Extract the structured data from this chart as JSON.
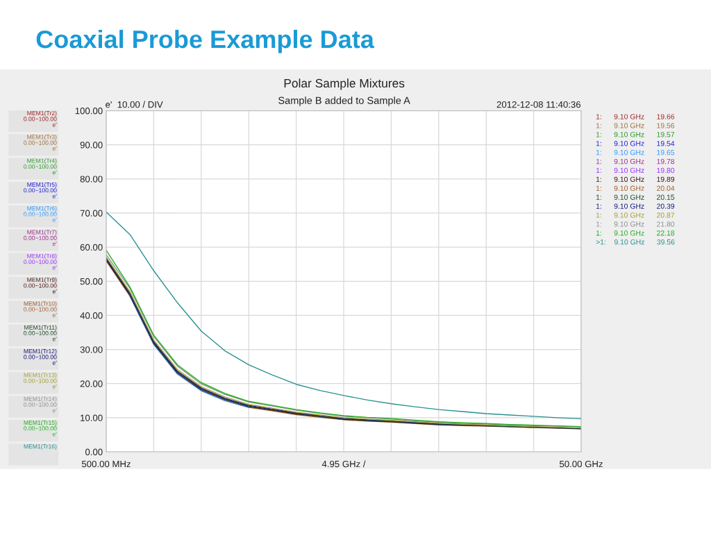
{
  "chart_data": {
    "type": "line",
    "title": "Coaxial Probe Example Data",
    "subtitle": "Polar Sample Mixtures",
    "categories": [
      "500.00 MHz",
      null,
      null,
      null,
      null,
      null,
      null,
      null,
      null,
      null,
      "4.95 GHz /",
      null,
      null,
      null,
      null,
      null,
      null,
      null,
      null,
      null,
      "50.00 GHz"
    ],
    "ylim": [
      0,
      100
    ],
    "yticks": [
      {
        "value": 0,
        "label": "0.00"
      },
      {
        "value": 10,
        "label": "10.00"
      },
      {
        "value": 20,
        "label": "20.00"
      },
      {
        "value": 30,
        "label": "30.00"
      },
      {
        "value": 40,
        "label": "40.00"
      },
      {
        "value": 50,
        "label": "50.00"
      },
      {
        "value": 60,
        "label": "60.00"
      },
      {
        "value": 70,
        "label": "70.00"
      },
      {
        "value": 80,
        "label": "80.00"
      },
      {
        "value": 90,
        "label": "90.00"
      },
      {
        "value": 100,
        "label": "100.00"
      }
    ],
    "grid": true,
    "legend": "left",
    "marker": "none",
    "line_style": "solid",
    "series": [
      {
        "name": "MEM1(Tr2)\n0.00~100.00\ne'",
        "color": "#a02828",
        "values": [
          null,
          null,
          null,
          null,
          null,
          null,
          null,
          null,
          null,
          null,
          null,
          null,
          null,
          null,
          null,
          null,
          null,
          null,
          null,
          null,
          null
        ]
      },
      {
        "name": "MEM1(Tr3)\n0.00~100.00\ne'",
        "color": "#a0703c",
        "values": [
          56.0,
          45.6,
          31.5,
          22.8,
          17.9,
          15.0,
          13.0,
          12.0,
          10.9,
          10.1,
          9.4,
          9.0,
          8.7,
          8.3,
          7.9,
          7.7,
          7.5,
          7.3,
          7.1,
          6.9,
          6.7
        ]
      },
      {
        "name": "MEM1(Tr4)\n0.00~100.00\ne'",
        "color": "#2e9a2e",
        "values": [
          null,
          null,
          null,
          null,
          null,
          null,
          null,
          null,
          null,
          null,
          null,
          null,
          null,
          null,
          null,
          null,
          null,
          null,
          null,
          null,
          null
        ]
      },
      {
        "name": "MEM1(Tr5)\n0.00~100.00\ne'",
        "color": "#2020e0",
        "values": [
          null,
          null,
          null,
          null,
          null,
          null,
          null,
          null,
          null,
          null,
          null,
          null,
          null,
          null,
          null,
          null,
          null,
          null,
          null,
          null,
          null
        ]
      },
      {
        "name": "MEM1(Tr6)\n0.00~100.00\ne'",
        "color": "#3399ff",
        "values": [
          null,
          45.6,
          31.5,
          22.8,
          17.9,
          15.0,
          13.0,
          null,
          null,
          null,
          null,
          null,
          null,
          null,
          null,
          null,
          null,
          null,
          null,
          null,
          null
        ]
      },
      {
        "name": "MEM1(Tr7)\n0.00~100.00\ne'",
        "color": "#a03090",
        "values": [
          null,
          null,
          null,
          null,
          null,
          null,
          null,
          null,
          null,
          null,
          null,
          null,
          null,
          null,
          null,
          null,
          null,
          null,
          null,
          null,
          null
        ]
      },
      {
        "name": "MEM1(Tr8)\n0.00~100.00\ne'",
        "color": "#9933ff",
        "values": [
          null,
          null,
          null,
          null,
          null,
          null,
          null,
          null,
          null,
          null,
          null,
          null,
          null,
          null,
          null,
          null,
          null,
          null,
          null,
          null,
          null
        ]
      },
      {
        "name": "MEM1(Tr9)\n0.00~100.00\ne'",
        "color": "#4a1a1a",
        "values": [
          56.2,
          45.9,
          31.8,
          23.1,
          18.2,
          15.3,
          13.2,
          12.2,
          11.1,
          10.3,
          9.5,
          9.1,
          8.8,
          8.4,
          8.0,
          7.8,
          7.6,
          7.4,
          7.2,
          7.0,
          6.8
        ]
      },
      {
        "name": "MEM1(Tr10)\n0.00~100.00\ne'",
        "color": "#a06030",
        "values": [
          null,
          null,
          null,
          null,
          null,
          null,
          null,
          null,
          null,
          null,
          null,
          null,
          null,
          null,
          null,
          null,
          null,
          null,
          null,
          null,
          null
        ]
      },
      {
        "name": "MEM1(Tr11)\n0.00~100.00\ne'",
        "color": "#1e4d2b",
        "values": [
          56.5,
          46.2,
          32.1,
          23.4,
          18.5,
          15.5,
          13.4,
          12.4,
          11.3,
          10.4,
          9.7,
          9.2,
          8.9,
          8.5,
          8.1,
          7.9,
          7.7,
          7.4,
          7.2,
          7.0,
          6.8
        ]
      },
      {
        "name": "MEM1(Tr12)\n0.00~100.00\ne'",
        "color": "#1a1a80",
        "values": [
          56.7,
          46.4,
          32.3,
          23.6,
          18.7,
          15.7,
          13.6,
          12.5,
          11.4,
          10.6,
          9.8,
          9.4,
          9.1,
          8.6,
          8.2,
          8.0,
          7.8,
          7.5,
          7.3,
          7.1,
          6.9
        ]
      },
      {
        "name": "MEM1(Tr13)\n0.00~100.00\ne'",
        "color": "#a0a030",
        "values": [
          57.1,
          46.9,
          32.8,
          24.1,
          19.1,
          16.1,
          13.9,
          12.8,
          11.6,
          10.8,
          10.0,
          9.6,
          9.2,
          8.8,
          8.4,
          8.1,
          7.9,
          7.6,
          7.4,
          7.2,
          7.0
        ]
      },
      {
        "name": "MEM1(Tr14)\n0.00~100.00\ne'",
        "color": "#909090",
        "values": [
          57.8,
          47.9,
          33.8,
          25.1,
          19.9,
          16.8,
          14.6,
          13.4,
          12.2,
          11.3,
          10.4,
          10.0,
          9.6,
          9.1,
          8.7,
          8.4,
          8.2,
          7.9,
          7.7,
          7.5,
          7.3
        ]
      },
      {
        "name": "MEM1(Tr15)\n0.00~100.00\ne'",
        "color": "#22b022",
        "values": [
          59.1,
          48.3,
          34.2,
          25.5,
          20.3,
          17.1,
          14.8,
          13.6,
          12.4,
          11.4,
          10.6,
          10.1,
          9.8,
          9.3,
          8.8,
          8.5,
          8.3,
          8.0,
          7.8,
          7.6,
          7.4
        ]
      },
      {
        "name": "MEM1(Tr16)",
        "color": "#2a9090",
        "values": [
          70.3,
          63.7,
          53.1,
          43.7,
          35.4,
          29.6,
          25.5,
          22.5,
          19.8,
          18.0,
          16.5,
          15.2,
          14.1,
          13.2,
          12.4,
          11.8,
          11.2,
          10.8,
          10.4,
          10.0,
          9.7
        ]
      }
    ],
    "annotations": [
      "Sample B added to Sample A",
      "e'  10.00 / DIV",
      "2012-12-08 11:40:36",
      "1:      9.10 GHz      19.66",
      "1:      9.10 GHz      19.56",
      "1:      9.10 GHz      19.57",
      "1:      9.10 GHz      19.54",
      "1:      9.10 GHz      19.65",
      "1:      9.10 GHz      19.78",
      "1:      9.10 GHz      19.80",
      "1:      9.10 GHz      19.89",
      "1:      9.10 GHz      20.04",
      "1:      9.10 GHz      20.15",
      "1:      9.10 GHz      20.39",
      "1:      9.10 GHz      20.87",
      "1:      9.10 GHz      21.80",
      "1:      9.10 GHz      22.18",
      ">1:    9.10 GHz      39.56"
    ]
  }
}
